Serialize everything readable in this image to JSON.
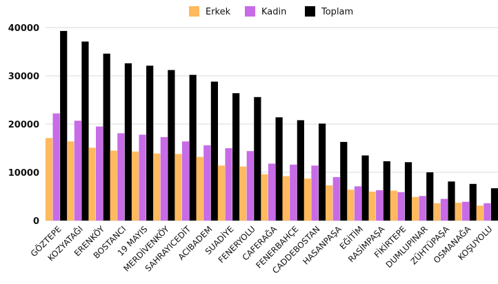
{
  "chart_data": {
    "type": "bar",
    "categories": [
      "GÖZTEPE",
      "KOZYATAĞI",
      "ERENKÖY",
      "BOSTANCI",
      "19 MAYIS",
      "MERDİVENKÖY",
      "SAHRAYICEDİT",
      "ACIBADEM",
      "SUADİYE",
      "FENERYOLU",
      "CAFERAĞA",
      "FENERBAHÇE",
      "CADDEBOSTAN",
      "HASANPAŞA",
      "EĞİTİM",
      "RASİMPAŞA",
      "FİKİRTEPE",
      "DUMLUPINAR",
      "ZÜHTÜPAŞA",
      "OSMANAĞA",
      "KOŞUYOLU"
    ],
    "series": [
      {
        "name": "Erkek",
        "color": "#FFB95E",
        "values": [
          17100,
          16400,
          15100,
          14500,
          14300,
          13900,
          13800,
          13200,
          11400,
          11200,
          9600,
          9200,
          8700,
          7300,
          6400,
          6000,
          6200,
          4900,
          3600,
          3700,
          3100
        ]
      },
      {
        "name": "Kadin",
        "color": "#C86BE6",
        "values": [
          22200,
          20700,
          19500,
          18100,
          17800,
          17300,
          16400,
          15600,
          15000,
          14400,
          11800,
          11600,
          11400,
          9000,
          7100,
          6300,
          5900,
          5100,
          4500,
          3900,
          3600
        ]
      },
      {
        "name": "Toplam",
        "color": "#000000",
        "values": [
          39300,
          37100,
          34600,
          32600,
          32100,
          31200,
          30200,
          28800,
          26400,
          25600,
          21400,
          20800,
          20100,
          16300,
          13500,
          12300,
          12100,
          10000,
          8100,
          7600,
          6700
        ]
      }
    ],
    "yticks": [
      "0",
      "10000",
      "20000",
      "30000",
      "40000"
    ],
    "ylim": [
      0,
      40000
    ],
    "grid": true,
    "legend": "top-center",
    "title": "",
    "xlabel": "",
    "ylabel": ""
  }
}
